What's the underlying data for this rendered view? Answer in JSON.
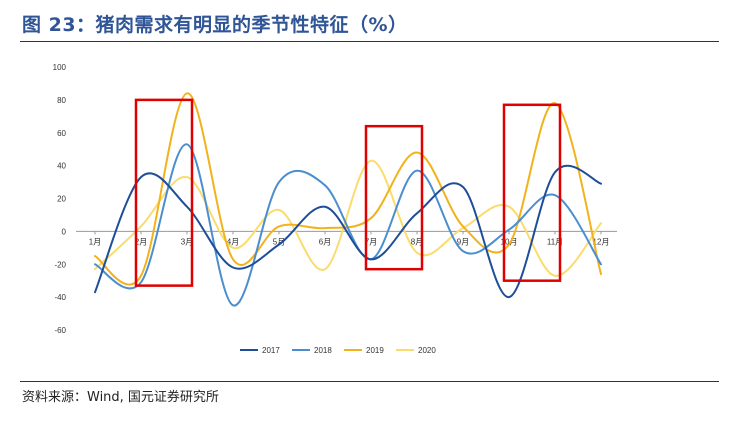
{
  "header": {
    "title": "图 23：猪肉需求有明显的季节性特征（%）"
  },
  "footer": {
    "source": "资料来源：Wind, 国元证券研究所"
  },
  "chart_data": {
    "type": "line",
    "title": "",
    "xlabel": "",
    "ylabel": "",
    "categories": [
      "1月",
      "2月",
      "3月",
      "4月",
      "5月",
      "6月",
      "7月",
      "8月",
      "9月",
      "10月",
      "11月",
      "12月"
    ],
    "ylim": [
      -60,
      100
    ],
    "yticks": [
      -60,
      -40,
      -20,
      0,
      20,
      40,
      60,
      80,
      100
    ],
    "grid": false,
    "legend_position": "bottom",
    "series": [
      {
        "name": "2017",
        "color": "#1f4e99",
        "values": [
          -37,
          33,
          15,
          -22,
          -8,
          15,
          -17,
          11,
          27,
          -40,
          36,
          29
        ]
      },
      {
        "name": "2018",
        "color": "#4a8ed0",
        "values": [
          -20,
          -31,
          53,
          -45,
          30,
          28,
          -17,
          37,
          -12,
          1,
          22,
          -20
        ]
      },
      {
        "name": "2019",
        "color": "#f2b21c",
        "values": [
          -15,
          -27,
          84,
          -17,
          3,
          2,
          8,
          48,
          3,
          -8,
          78,
          -26
        ]
      },
      {
        "name": "2020",
        "color": "#fadc6e",
        "values": [
          -23,
          3,
          33,
          -10,
          13,
          -23,
          43,
          -13,
          2,
          15,
          -27,
          5
        ]
      }
    ],
    "highlight_boxes": [
      {
        "x_from": "2月",
        "x_to": "3月",
        "y_from": -33,
        "y_to": 80,
        "color": "#e00000"
      },
      {
        "x_from": "7月",
        "x_to": "8月",
        "y_from": -23,
        "y_to": 64,
        "color": "#e00000"
      },
      {
        "x_from": "10月",
        "x_to": "11月",
        "y_from": -30,
        "y_to": 77,
        "color": "#e00000"
      }
    ]
  }
}
